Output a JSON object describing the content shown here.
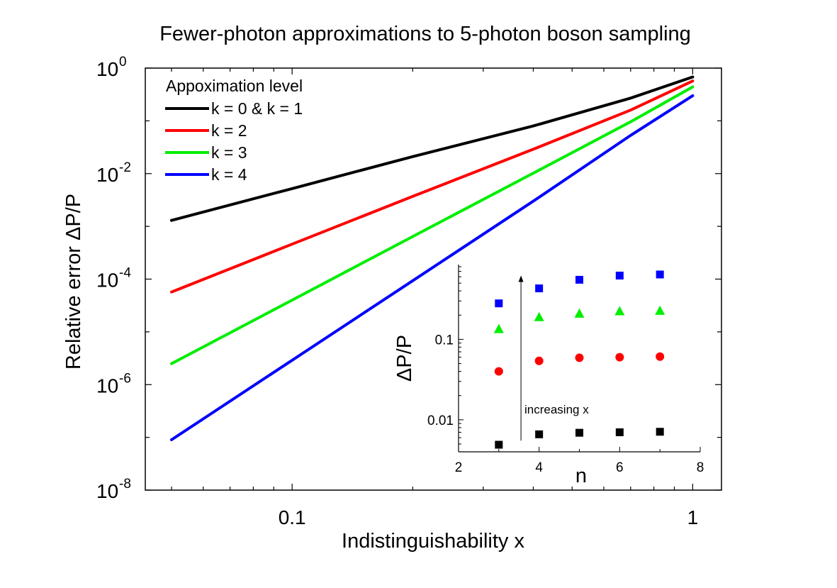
{
  "chart_data": [
    {
      "type": "line",
      "title": "Fewer-photon approximations to 5-photon boson sampling",
      "xlabel": "Indistinguishability x",
      "ylabel": "Relative error ΔP/P",
      "xscale": "log",
      "yscale": "log",
      "xlim": [
        0.043,
        1.18
      ],
      "ylim": [
        1e-08,
        1
      ],
      "xticks": [
        {
          "value": 0.1,
          "label": "0.1"
        },
        {
          "value": 1,
          "label": "1"
        }
      ],
      "yticks": [
        {
          "value": 1,
          "base": "10",
          "exp": "0"
        },
        {
          "value": 0.01,
          "base": "10",
          "exp": "-2"
        },
        {
          "value": 0.0001,
          "base": "10",
          "exp": "-4"
        },
        {
          "value": 1e-06,
          "base": "10",
          "exp": "-6"
        },
        {
          "value": 1e-08,
          "base": "10",
          "exp": "-8"
        }
      ],
      "legend": {
        "title": "Appoximation level",
        "position": "top-left"
      },
      "series": [
        {
          "name": "k = 0 & k = 1",
          "color": "#000000",
          "x": [
            0.05,
            0.1,
            0.2,
            0.4,
            0.7,
            1.0
          ],
          "y": [
            0.0013,
            0.0052,
            0.021,
            0.08,
            0.27,
            0.68
          ]
        },
        {
          "name": "k = 2",
          "color": "#ff0000",
          "x": [
            0.05,
            0.1,
            0.2,
            0.4,
            0.7,
            1.0
          ],
          "y": [
            5.7e-05,
            0.00046,
            0.0037,
            0.029,
            0.16,
            0.57
          ]
        },
        {
          "name": "k = 3",
          "color": "#00ee00",
          "x": [
            0.05,
            0.1,
            0.2,
            0.4,
            0.7,
            1.0
          ],
          "y": [
            2.5e-06,
            4e-05,
            0.00064,
            0.0102,
            0.096,
            0.44
          ]
        },
        {
          "name": "k = 4",
          "color": "#0000ff",
          "x": [
            0.05,
            0.1,
            0.2,
            0.4,
            0.7,
            1.0
          ],
          "y": [
            9e-08,
            2.9e-06,
            9.3e-05,
            0.003,
            0.053,
            0.3
          ]
        }
      ]
    },
    {
      "type": "scatter",
      "title": "",
      "xlabel": "n",
      "ylabel": "ΔP/P",
      "xscale": "linear",
      "yscale": "log",
      "xlim": [
        2,
        8
      ],
      "ylim": [
        0.004,
        0.85
      ],
      "xticks": [
        {
          "value": 2,
          "label": "2"
        },
        {
          "value": 4,
          "label": "4"
        },
        {
          "value": 6,
          "label": "6"
        },
        {
          "value": 8,
          "label": "8"
        }
      ],
      "yticks": [
        {
          "value": 0.01,
          "label": "0.01"
        },
        {
          "value": 0.1,
          "label": "0.1"
        }
      ],
      "annotation": {
        "text": "increasing x",
        "from_y": 0.0055,
        "to_y": 0.62,
        "x": 3.55
      },
      "series": [
        {
          "name": "black",
          "marker": "square",
          "color": "#000000",
          "x": [
            3,
            4,
            5,
            6,
            7
          ],
          "y": [
            0.0049,
            0.0066,
            0.0069,
            0.007,
            0.0071
          ]
        },
        {
          "name": "red",
          "marker": "circle",
          "color": "#ff0000",
          "x": [
            3,
            4,
            5,
            6,
            7
          ],
          "y": [
            0.04,
            0.054,
            0.059,
            0.06,
            0.061
          ]
        },
        {
          "name": "green",
          "marker": "triangle",
          "color": "#00ee00",
          "x": [
            3,
            4,
            5,
            6,
            7
          ],
          "y": [
            0.135,
            0.19,
            0.21,
            0.225,
            0.228
          ]
        },
        {
          "name": "blue",
          "marker": "square",
          "color": "#0000ff",
          "x": [
            3,
            4,
            5,
            6,
            7
          ],
          "y": [
            0.28,
            0.43,
            0.55,
            0.62,
            0.64
          ]
        }
      ]
    }
  ]
}
